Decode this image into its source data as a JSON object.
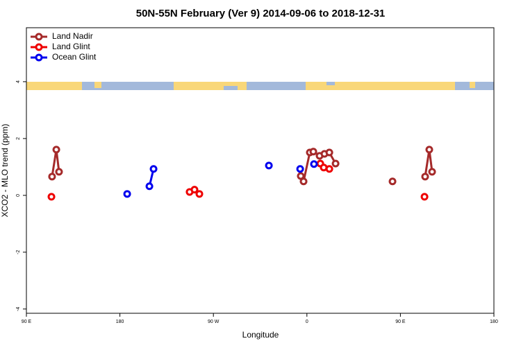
{
  "chart_data": {
    "type": "line",
    "title": "50N-55N February (Ver 9)   2014-09-06 to 2018-12-31",
    "x_label": "Longitude",
    "y_label": "XCO2 - MLO trend (ppm)",
    "xlim": [
      90,
      540
    ],
    "ylim": [
      -4.15,
      5.9
    ],
    "xticks": [
      {
        "value": 90,
        "label": "90 E"
      },
      180,
      {
        "value": 270,
        "label": "90 W"
      },
      {
        "value": 360,
        "label": "0"
      },
      {
        "value": 450,
        "label": "90 E"
      },
      {
        "value": 540,
        "label": "180"
      }
    ],
    "yticks": [
      -4,
      -2,
      0,
      2,
      4
    ],
    "legend": "top-left",
    "series": [
      {
        "name": "Land Nadir",
        "color": "#a52a2a",
        "x": [
          114.7,
          118.8,
          121.4,
          null,
          354.1,
          356.8,
          362.8,
          366.2,
          372.2,
          376.9,
          381.6,
          387.6,
          null,
          442.4,
          null,
          473.8,
          477.8,
          480.5
        ],
        "values": [
          0.66,
          1.61,
          0.83,
          null,
          0.68,
          0.49,
          1.51,
          1.54,
          1.39,
          1.46,
          1.51,
          1.12,
          null,
          0.49,
          null,
          0.66,
          1.61,
          0.83
        ]
      },
      {
        "name": "Land Glint",
        "color": "#ee0000",
        "x": [
          114.1,
          null,
          247.1,
          251.8,
          256.5,
          null,
          372.9,
          376.2,
          381.6,
          null,
          473.2
        ],
        "values": [
          -0.05,
          null,
          0.12,
          0.2,
          0.05,
          null,
          1.12,
          0.98,
          0.93,
          null,
          -0.05
        ]
      },
      {
        "name": "Ocean Glint",
        "color": "#0000ee",
        "x": [
          187.0,
          null,
          208.4,
          212.4,
          null,
          323.4,
          null,
          353.5,
          null,
          366.8
        ],
        "values": [
          0.05,
          null,
          0.32,
          0.93,
          null,
          1.05,
          null,
          0.93,
          null,
          1.1
        ]
      }
    ]
  }
}
